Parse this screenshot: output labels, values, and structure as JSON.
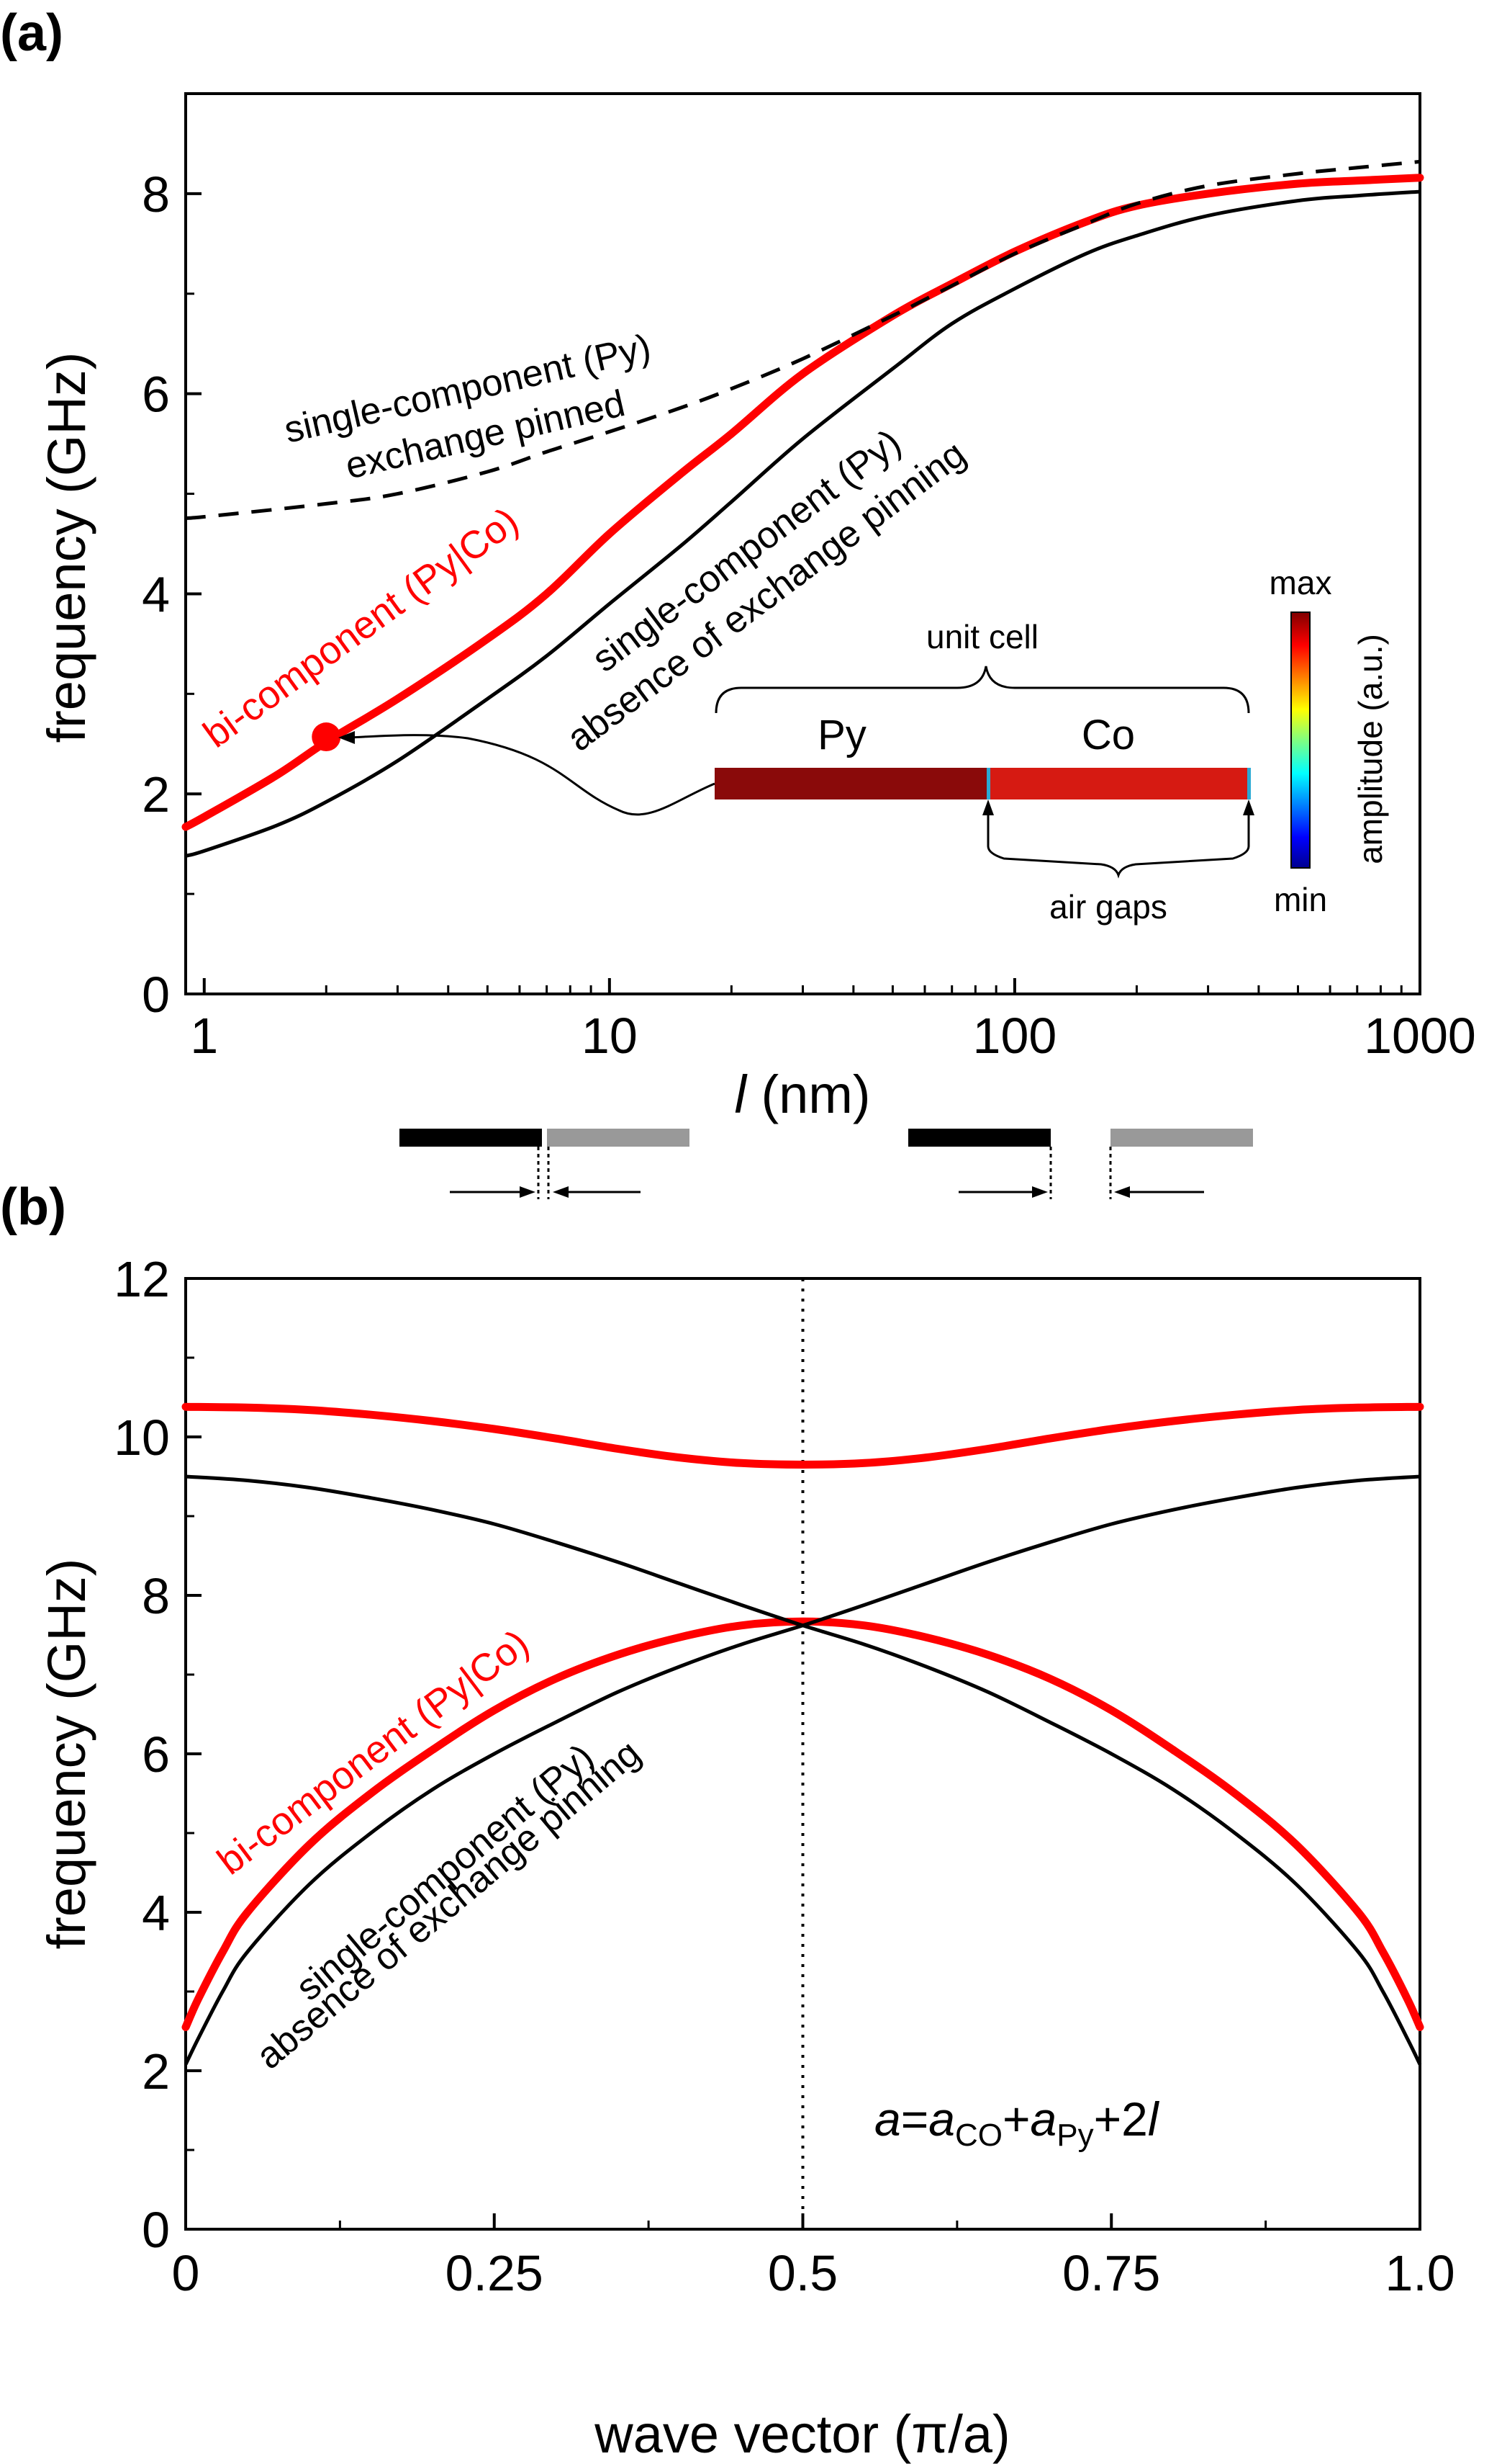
{
  "chart_data": [
    {
      "panel": "(a)",
      "type": "line",
      "xscale": "log",
      "xlabel_italic": "l",
      "xlabel": " (nm)",
      "ylabel": "frequency (GHz)",
      "xlim": [
        0.9,
        1000
      ],
      "ylim": [
        0,
        9
      ],
      "xticks": [
        1,
        10,
        100,
        1000
      ],
      "xtick_labels": [
        "1",
        "10",
        "100",
        "1000"
      ],
      "yticks": [
        0,
        2,
        4,
        6,
        8
      ],
      "ytick_labels": [
        "0",
        "2",
        "4",
        "6",
        "8"
      ],
      "series": [
        {
          "key": "bi",
          "color": "#ff0000",
          "style": "solid-thick",
          "x": [
            0.9,
            1,
            1.5,
            2,
            3,
            5,
            7,
            10,
            15,
            20,
            30,
            50,
            70,
            100,
            150,
            200,
            300,
            500,
            700,
            1000
          ],
          "y": [
            1.67,
            1.77,
            2.18,
            2.52,
            2.95,
            3.55,
            4.0,
            4.6,
            5.2,
            5.6,
            6.2,
            6.78,
            7.1,
            7.42,
            7.72,
            7.88,
            8.0,
            8.1,
            8.13,
            8.16
          ]
        },
        {
          "key": "single_absent",
          "color": "#000000",
          "style": "solid-thin",
          "x": [
            0.9,
            1,
            1.5,
            2,
            3,
            5,
            7,
            10,
            15,
            20,
            30,
            50,
            70,
            100,
            150,
            200,
            300,
            500,
            700,
            1000
          ],
          "y": [
            1.38,
            1.43,
            1.68,
            1.92,
            2.33,
            2.95,
            3.38,
            3.9,
            4.48,
            4.92,
            5.55,
            6.25,
            6.7,
            7.05,
            7.4,
            7.58,
            7.78,
            7.93,
            7.98,
            8.02
          ]
        },
        {
          "key": "single_pinned",
          "color": "#000000",
          "style": "dashed",
          "x": [
            0.9,
            1,
            2,
            3,
            5,
            7,
            10,
            15,
            20,
            30,
            50,
            70,
            100,
            150,
            200,
            300,
            500,
            700,
            1000
          ],
          "y": [
            4.76,
            4.77,
            4.9,
            5.0,
            5.22,
            5.42,
            5.62,
            5.86,
            6.05,
            6.35,
            6.78,
            7.08,
            7.4,
            7.7,
            7.9,
            8.08,
            8.2,
            8.26,
            8.32
          ]
        }
      ],
      "marker": {
        "x": 2,
        "y": 2.57,
        "color": "#ff0000"
      },
      "annotations": {
        "pinned_line1": "single-component (Py)",
        "pinned_line2": "exchange pinned",
        "absent_line1": "single-component (Py)",
        "absent_line2": "absence of exchange pinning",
        "bi_label": "bi-component (Py|Co)"
      },
      "inset": {
        "unit_cell": "unit cell",
        "py_label": "Py",
        "co_label": "Co",
        "air_gaps": "air gaps",
        "colorbar_max": "max",
        "colorbar_min": "min",
        "colorbar_label": "amplitude (a.u.)",
        "py_color": "#8a0a0a",
        "co_color": "#d61a12"
      }
    },
    {
      "panel": "(b)",
      "type": "line",
      "xlabel": "wave vector (π/a)",
      "ylabel": "frequency (GHz)",
      "xlim": [
        0,
        1.0
      ],
      "ylim": [
        0,
        12
      ],
      "xticks": [
        0,
        0.25,
        0.5,
        0.75,
        1.0
      ],
      "xtick_labels": [
        "0",
        "0.25",
        "0.5",
        "0.75",
        "1.0"
      ],
      "yticks": [
        0,
        2,
        4,
        6,
        8,
        10,
        12
      ],
      "ytick_labels": [
        "0",
        "2",
        "4",
        "6",
        "8",
        "10",
        "12"
      ],
      "vline_x": 0.5,
      "series": [
        {
          "key": "bi_upper",
          "color": "#ff0000",
          "style": "solid-thick",
          "x": [
            0,
            0.05,
            0.1,
            0.15,
            0.2,
            0.25,
            0.3,
            0.35,
            0.4,
            0.45,
            0.5,
            0.55,
            0.6,
            0.65,
            0.7,
            0.75,
            0.8,
            0.85,
            0.9,
            0.95,
            1.0
          ],
          "y": [
            10.38,
            10.37,
            10.34,
            10.28,
            10.2,
            10.1,
            9.98,
            9.85,
            9.74,
            9.67,
            9.65,
            9.67,
            9.74,
            9.85,
            9.98,
            10.1,
            10.2,
            10.28,
            10.34,
            10.37,
            10.38
          ]
        },
        {
          "key": "bi_lower",
          "color": "#ff0000",
          "style": "solid-thick",
          "x": [
            0,
            0.01,
            0.03,
            0.05,
            0.1,
            0.15,
            0.2,
            0.25,
            0.3,
            0.35,
            0.4,
            0.45,
            0.5,
            0.55,
            0.6,
            0.65,
            0.7,
            0.75,
            0.8,
            0.85,
            0.9,
            0.95,
            0.97,
            0.99,
            1.0
          ],
          "y": [
            2.55,
            2.9,
            3.5,
            4.0,
            4.85,
            5.5,
            6.05,
            6.55,
            6.95,
            7.25,
            7.47,
            7.62,
            7.67,
            7.62,
            7.47,
            7.25,
            6.95,
            6.55,
            6.05,
            5.5,
            4.85,
            4.0,
            3.5,
            2.9,
            2.55
          ]
        },
        {
          "key": "single_rising",
          "color": "#000000",
          "style": "solid-thin",
          "x": [
            0,
            0.01,
            0.03,
            0.05,
            0.1,
            0.15,
            0.2,
            0.25,
            0.3,
            0.35,
            0.4,
            0.45,
            0.5,
            0.55,
            0.6,
            0.65,
            0.7,
            0.75,
            0.8,
            0.85,
            0.9,
            0.95,
            1.0
          ],
          "y": [
            2.08,
            2.4,
            3.0,
            3.5,
            4.35,
            5.0,
            5.55,
            6.0,
            6.4,
            6.78,
            7.1,
            7.38,
            7.62,
            7.88,
            8.15,
            8.42,
            8.67,
            8.9,
            9.08,
            9.23,
            9.36,
            9.45,
            9.5
          ]
        },
        {
          "key": "single_falling",
          "color": "#000000",
          "style": "solid-thin",
          "x": [
            0,
            0.05,
            0.1,
            0.15,
            0.2,
            0.25,
            0.3,
            0.35,
            0.4,
            0.45,
            0.5,
            0.55,
            0.6,
            0.65,
            0.7,
            0.75,
            0.8,
            0.85,
            0.9,
            0.95,
            0.97,
            0.99,
            1.0
          ],
          "y": [
            9.5,
            9.45,
            9.36,
            9.23,
            9.08,
            8.9,
            8.67,
            8.42,
            8.15,
            7.88,
            7.62,
            7.38,
            7.1,
            6.78,
            6.4,
            6.0,
            5.55,
            5.0,
            4.35,
            3.5,
            3.0,
            2.4,
            2.08
          ]
        }
      ],
      "annotations": {
        "bi_label": "bi-component (Py|Co)",
        "absent_line1": "single-component (Py)",
        "absent_line2": "absence of exchange pinning",
        "formula": {
          "a1": "a",
          "eq": "=",
          "a2": "a",
          "sub_co": "CO",
          "plus1": "+",
          "a3": "a",
          "sub_py": "Py",
          "plus2": "+2",
          "l": "l"
        }
      }
    }
  ]
}
